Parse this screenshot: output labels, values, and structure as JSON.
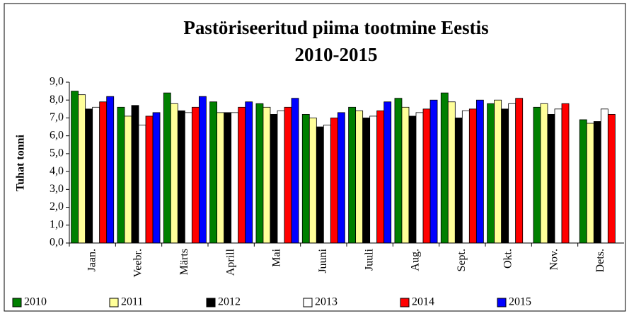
{
  "chart_data": {
    "type": "bar",
    "title": [
      "Pastöriseeritud piima tootmine Eestis",
      "2010-2015"
    ],
    "y_label": "Tuhat tonni",
    "categories": [
      "Jaan.",
      "Veebr.",
      "Märts",
      "Aprill",
      "Mai",
      "Juuni",
      "Juuli",
      "Aug.",
      "Sept.",
      "Okt.",
      "Nov.",
      "Dets."
    ],
    "series": [
      {
        "name": "2010",
        "color": "#008000",
        "values": [
          8.5,
          7.6,
          8.4,
          7.9,
          7.8,
          7.2,
          7.6,
          8.1,
          8.4,
          7.8,
          7.6,
          6.9
        ]
      },
      {
        "name": "2011",
        "color": "#ffff99",
        "values": [
          8.3,
          7.1,
          7.8,
          7.3,
          7.6,
          7.0,
          7.4,
          7.6,
          7.9,
          8.0,
          7.8,
          6.7
        ]
      },
      {
        "name": "2012",
        "color": "#000000",
        "values": [
          7.5,
          7.7,
          7.4,
          7.3,
          7.2,
          6.5,
          7.0,
          7.1,
          7.0,
          7.5,
          7.2,
          6.8
        ]
      },
      {
        "name": "2013",
        "color": "#ffffff",
        "values": [
          7.6,
          6.6,
          7.3,
          7.3,
          7.4,
          6.6,
          7.1,
          7.3,
          7.4,
          7.8,
          7.5,
          7.5
        ]
      },
      {
        "name": "2014",
        "color": "#ff0000",
        "values": [
          7.9,
          7.1,
          7.6,
          7.6,
          7.6,
          7.0,
          7.4,
          7.5,
          7.5,
          8.1,
          7.8,
          7.2
        ]
      },
      {
        "name": "2015",
        "color": "#0000ff",
        "values": [
          8.2,
          7.3,
          8.2,
          7.9,
          8.1,
          7.3,
          7.9,
          8.0,
          8.0,
          null,
          null,
          null
        ]
      }
    ],
    "ylim": [
      0,
      9
    ],
    "yticks": [
      {
        "value": 0,
        "label": "0,0"
      },
      {
        "value": 1,
        "label": "1,0"
      },
      {
        "value": 2,
        "label": "2,0"
      },
      {
        "value": 3,
        "label": "3,0"
      },
      {
        "value": 4,
        "label": "4,0"
      },
      {
        "value": 5,
        "label": "5,0"
      },
      {
        "value": 6,
        "label": "6,0"
      },
      {
        "value": 7,
        "label": "7,0"
      },
      {
        "value": 8,
        "label": "8,0"
      },
      {
        "value": 9,
        "label": "9,0"
      }
    ],
    "legend": "bottom"
  }
}
